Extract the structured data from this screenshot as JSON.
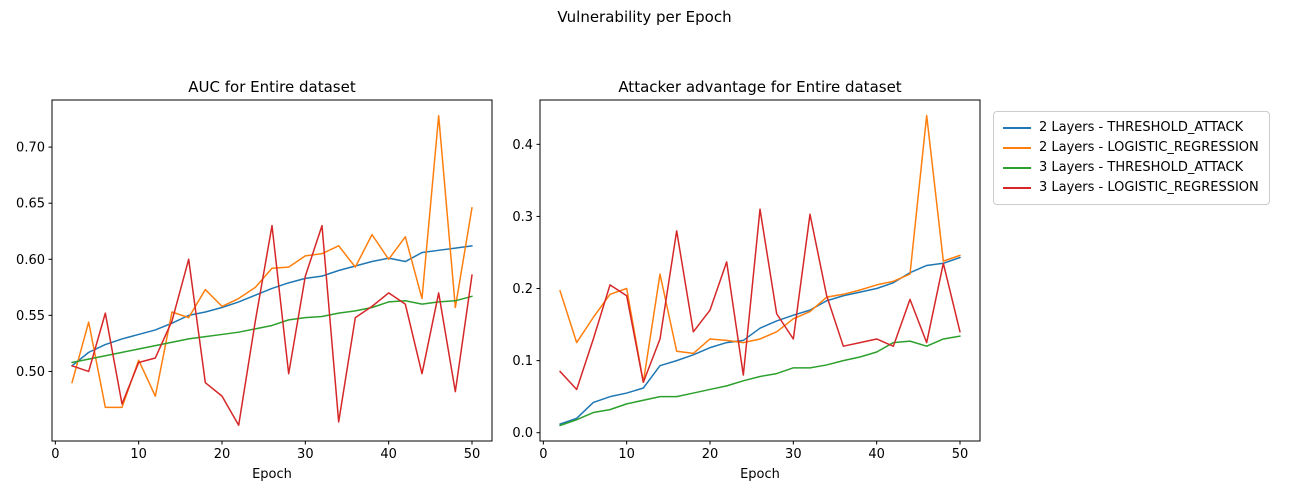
{
  "figure": {
    "suptitle": "Vulnerability per Epoch",
    "background": "#ffffff"
  },
  "legend": {
    "entries": [
      {
        "label": "2 Layers - THRESHOLD_ATTACK",
        "color": "#1f77b4"
      },
      {
        "label": "2 Layers - LOGISTIC_REGRESSION",
        "color": "#ff7f0e"
      },
      {
        "label": "3 Layers - THRESHOLD_ATTACK",
        "color": "#2ca02c"
      },
      {
        "label": "3 Layers - LOGISTIC_REGRESSION",
        "color": "#d62728"
      }
    ]
  },
  "chart_data": [
    {
      "type": "line",
      "title": "AUC for Entire dataset",
      "xlabel": "Epoch",
      "ylabel": "",
      "grid": false,
      "legend_position": "outside-upper-right-of-figure",
      "x": [
        2,
        4,
        6,
        8,
        10,
        12,
        14,
        16,
        18,
        20,
        22,
        24,
        26,
        28,
        30,
        32,
        34,
        36,
        38,
        40,
        42,
        44,
        46,
        48,
        50
      ],
      "xlim": [
        -0.4,
        52.4
      ],
      "ylim": [
        0.438,
        0.742
      ],
      "xticks": [
        0,
        10,
        20,
        30,
        40,
        50
      ],
      "xtick_labels": [
        "0",
        "10",
        "20",
        "30",
        "40",
        "50"
      ],
      "yticks": [
        0.5,
        0.55,
        0.6,
        0.65,
        0.7
      ],
      "ytick_labels": [
        "0.50",
        "0.55",
        "0.60",
        "0.65",
        "0.70"
      ],
      "series": [
        {
          "name": "2 Layers - THRESHOLD_ATTACK",
          "color": "#1f77b4",
          "values": [
            0.505,
            0.517,
            0.524,
            0.529,
            0.533,
            0.537,
            0.543,
            0.55,
            0.553,
            0.557,
            0.562,
            0.568,
            0.574,
            0.579,
            0.583,
            0.585,
            0.59,
            0.594,
            0.598,
            0.601,
            0.598,
            0.606,
            0.608,
            0.61,
            0.612
          ]
        },
        {
          "name": "2 Layers - LOGISTIC_REGRESSION",
          "color": "#ff7f0e",
          "values": [
            0.49,
            0.544,
            0.468,
            0.468,
            0.51,
            0.478,
            0.553,
            0.548,
            0.573,
            0.558,
            0.565,
            0.575,
            0.592,
            0.593,
            0.603,
            0.605,
            0.612,
            0.593,
            0.622,
            0.6,
            0.62,
            0.565,
            0.728,
            0.557,
            0.646
          ]
        },
        {
          "name": "3 Layers - THRESHOLD_ATTACK",
          "color": "#2ca02c",
          "values": [
            0.508,
            0.511,
            0.514,
            0.517,
            0.52,
            0.523,
            0.526,
            0.529,
            0.531,
            0.533,
            0.535,
            0.538,
            0.541,
            0.546,
            0.548,
            0.549,
            0.552,
            0.554,
            0.557,
            0.562,
            0.563,
            0.56,
            0.562,
            0.563,
            0.567
          ]
        },
        {
          "name": "3 Layers - LOGISTIC_REGRESSION",
          "color": "#d62728",
          "values": [
            0.505,
            0.5,
            0.552,
            0.471,
            0.508,
            0.512,
            0.545,
            0.6,
            0.49,
            0.478,
            0.452,
            0.545,
            0.63,
            0.498,
            0.585,
            0.63,
            0.455,
            0.548,
            0.558,
            0.57,
            0.56,
            0.498,
            0.57,
            0.482,
            0.586
          ]
        }
      ]
    },
    {
      "type": "line",
      "title": "Attacker advantage for Entire dataset",
      "xlabel": "Epoch",
      "ylabel": "",
      "grid": false,
      "legend_position": "outside-upper-right-of-figure",
      "x": [
        2,
        4,
        6,
        8,
        10,
        12,
        14,
        16,
        18,
        20,
        22,
        24,
        26,
        28,
        30,
        32,
        34,
        36,
        38,
        40,
        42,
        44,
        46,
        48,
        50
      ],
      "xlim": [
        -0.4,
        52.4
      ],
      "ylim": [
        -0.0115,
        0.4615
      ],
      "xticks": [
        0,
        10,
        20,
        30,
        40,
        50
      ],
      "xtick_labels": [
        "0",
        "10",
        "20",
        "30",
        "40",
        "50"
      ],
      "yticks": [
        0.0,
        0.1,
        0.2,
        0.3,
        0.4
      ],
      "ytick_labels": [
        "0.0",
        "0.1",
        "0.2",
        "0.3",
        "0.4"
      ],
      "series": [
        {
          "name": "2 Layers - THRESHOLD_ATTACK",
          "color": "#1f77b4",
          "values": [
            0.012,
            0.02,
            0.042,
            0.05,
            0.055,
            0.062,
            0.093,
            0.1,
            0.108,
            0.118,
            0.125,
            0.128,
            0.145,
            0.155,
            0.163,
            0.17,
            0.183,
            0.19,
            0.195,
            0.2,
            0.208,
            0.222,
            0.232,
            0.235,
            0.243
          ]
        },
        {
          "name": "2 Layers - LOGISTIC_REGRESSION",
          "color": "#ff7f0e",
          "values": [
            0.197,
            0.125,
            0.16,
            0.192,
            0.2,
            0.07,
            0.22,
            0.113,
            0.11,
            0.13,
            0.128,
            0.125,
            0.13,
            0.14,
            0.158,
            0.168,
            0.188,
            0.192,
            0.198,
            0.205,
            0.21,
            0.22,
            0.44,
            0.238,
            0.246
          ]
        },
        {
          "name": "3 Layers - THRESHOLD_ATTACK",
          "color": "#2ca02c",
          "values": [
            0.01,
            0.018,
            0.028,
            0.032,
            0.04,
            0.045,
            0.05,
            0.05,
            0.055,
            0.06,
            0.065,
            0.072,
            0.078,
            0.082,
            0.09,
            0.09,
            0.094,
            0.1,
            0.105,
            0.112,
            0.125,
            0.127,
            0.12,
            0.13,
            0.134
          ]
        },
        {
          "name": "3 Layers - LOGISTIC_REGRESSION",
          "color": "#d62728",
          "values": [
            0.085,
            0.06,
            0.13,
            0.205,
            0.19,
            0.07,
            0.13,
            0.28,
            0.14,
            0.17,
            0.237,
            0.08,
            0.31,
            0.165,
            0.13,
            0.303,
            0.19,
            0.12,
            0.125,
            0.13,
            0.12,
            0.185,
            0.125,
            0.235,
            0.14
          ]
        }
      ]
    }
  ]
}
